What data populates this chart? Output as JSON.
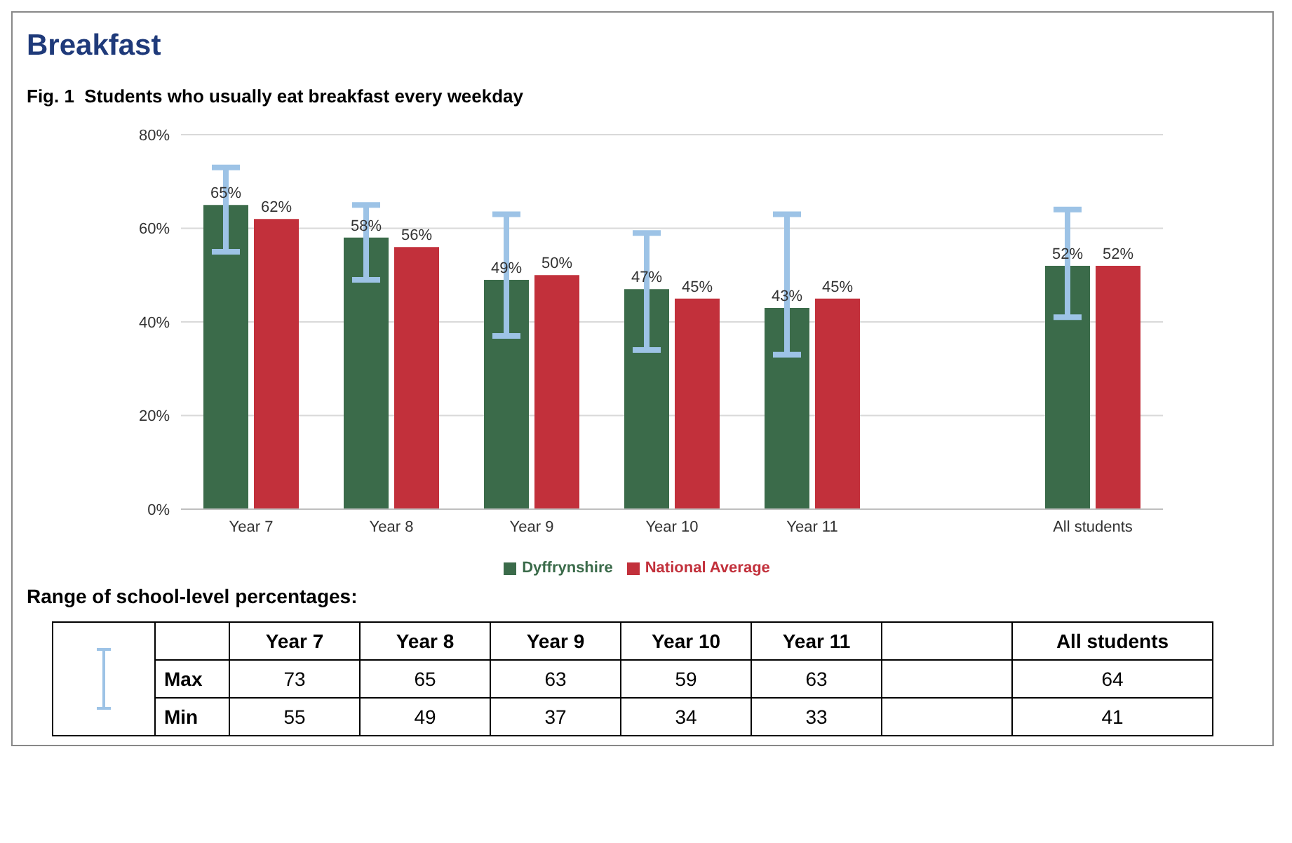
{
  "chart_data": {
    "type": "bar",
    "title": "Breakfast",
    "subtitle": "Fig. 1  Students who usually eat breakfast every weekday",
    "categories": [
      "Year 7",
      "Year 8",
      "Year 9",
      "Year 10",
      "Year 11",
      null,
      "All students"
    ],
    "series": [
      {
        "name": "Dyffrynshire",
        "color": "#3b6b4a",
        "values": [
          65,
          58,
          49,
          47,
          43,
          null,
          52
        ],
        "value_labels": [
          "65%",
          "58%",
          "49%",
          "47%",
          "43%",
          null,
          "52%"
        ],
        "errors": [
          [
            55,
            73
          ],
          [
            49,
            65
          ],
          [
            37,
            63
          ],
          [
            34,
            59
          ],
          [
            33,
            63
          ],
          null,
          [
            41,
            64
          ]
        ]
      },
      {
        "name": "National Average",
        "color": "#c2303b",
        "values": [
          62,
          56,
          50,
          45,
          45,
          null,
          52
        ],
        "value_labels": [
          "62%",
          "56%",
          "50%",
          "45%",
          "45%",
          null,
          "52%"
        ]
      }
    ],
    "ylim": [
      0,
      80
    ],
    "yticks": [
      {
        "value": 0,
        "label": "0%"
      },
      {
        "value": 20,
        "label": "20%"
      },
      {
        "value": 40,
        "label": "40%"
      },
      {
        "value": 60,
        "label": "60%"
      },
      {
        "value": 80,
        "label": "80%"
      }
    ],
    "grid": "y",
    "legend": "bottom",
    "annotations": [
      "Range of school-level percentages:",
      "Max",
      "Min",
      "73",
      "65",
      "63",
      "59",
      "63",
      "64",
      "55",
      "49",
      "37",
      "34",
      "33",
      "41"
    ]
  }
}
